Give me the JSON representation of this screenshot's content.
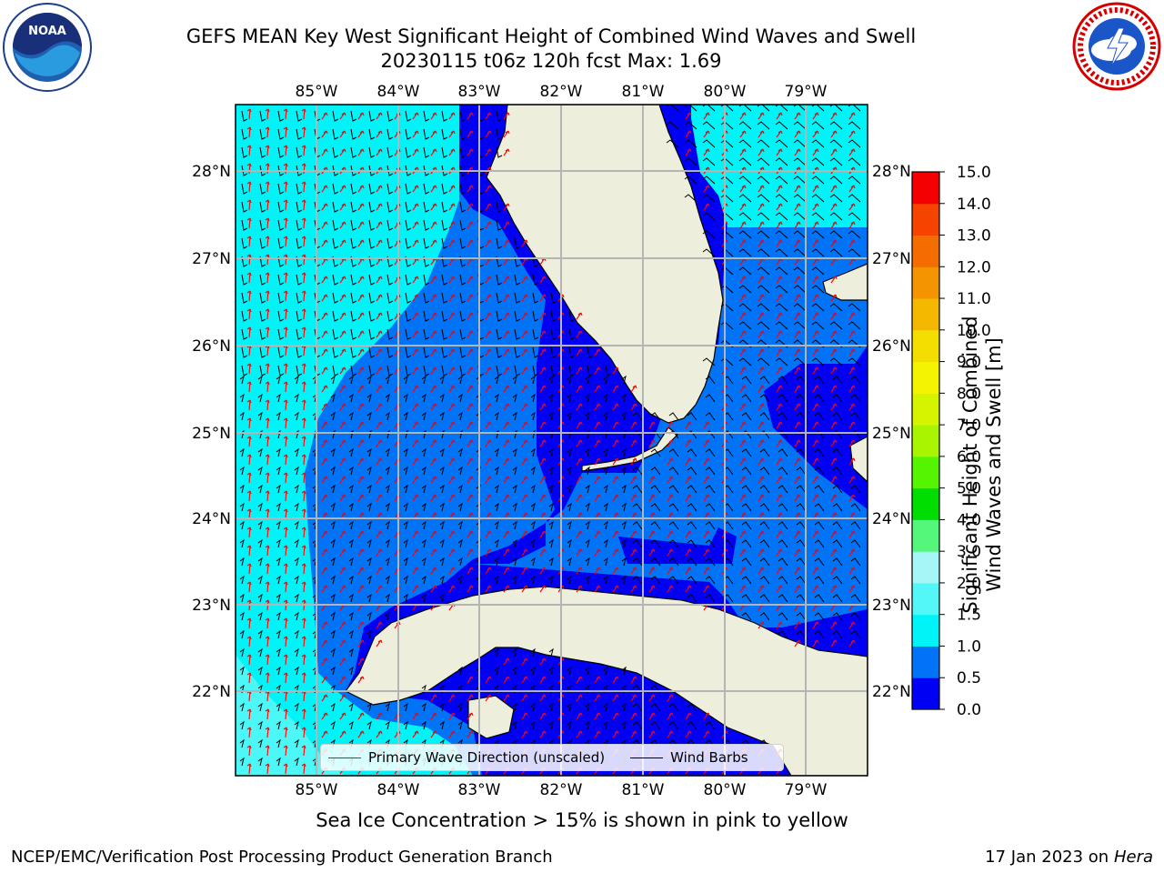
{
  "header": {
    "title_line1": "GEFS MEAN Key West Significant Height of Combined Wind Waves and Swell",
    "title_line2": "20230115 t06z 120h fcst   Max: 1.69"
  },
  "logos": {
    "left": {
      "name": "noaa-logo",
      "text": "NOAA"
    },
    "right": {
      "name": "nws-logo"
    }
  },
  "map": {
    "lon_labels": [
      "85°W",
      "84°W",
      "83°W",
      "82°W",
      "81°W",
      "80°W",
      "79°W"
    ],
    "lat_labels": [
      "28°N",
      "27°N",
      "26°N",
      "25°N",
      "24°N",
      "23°N",
      "22°N"
    ],
    "colors": {
      "land": "#eeeedc",
      "band_0_0_5": "#0000f5",
      "band_0_5_1_0": "#0073f7",
      "band_1_0_1_5": "#00f3f7",
      "band_1_5_2_0": "#54f7f7",
      "grid": "#b5b5b5",
      "wave_arrow": "#ff0000",
      "wind_barb": "#000000"
    }
  },
  "colorbar": {
    "ticks": [
      "15.0",
      "14.0",
      "13.0",
      "12.0",
      "11.0",
      "10.0",
      "9.0",
      "8.0",
      "7.0",
      "6.0",
      "5.0",
      "4.0",
      "3.0",
      "2.0",
      "1.5",
      "1.0",
      "0.5",
      "0.0"
    ],
    "label_line1": "Significant Height of Combined",
    "label_line2": "Wind Waves and Swell [m]",
    "colors": [
      "#0000f5",
      "#0073f7",
      "#00f3f7",
      "#54f7f7",
      "#a5f7f7",
      "#54f779",
      "#00dd00",
      "#55f400",
      "#a9f400",
      "#d4f400",
      "#f4f400",
      "#f4dd00",
      "#f4b800",
      "#f49400",
      "#f46d00",
      "#f44400",
      "#f40000"
    ]
  },
  "legend": {
    "wave_label": "Primary Wave Direction (unscaled)",
    "wind_label": "Wind Barbs"
  },
  "caption": "Sea Ice Concentration > 15% is shown in pink to yellow",
  "footer": {
    "left": "NCEP/EMC/Verification Post Processing Product Generation Branch",
    "right_prefix": "17 Jan 2023 on ",
    "right_host": "Hera"
  }
}
